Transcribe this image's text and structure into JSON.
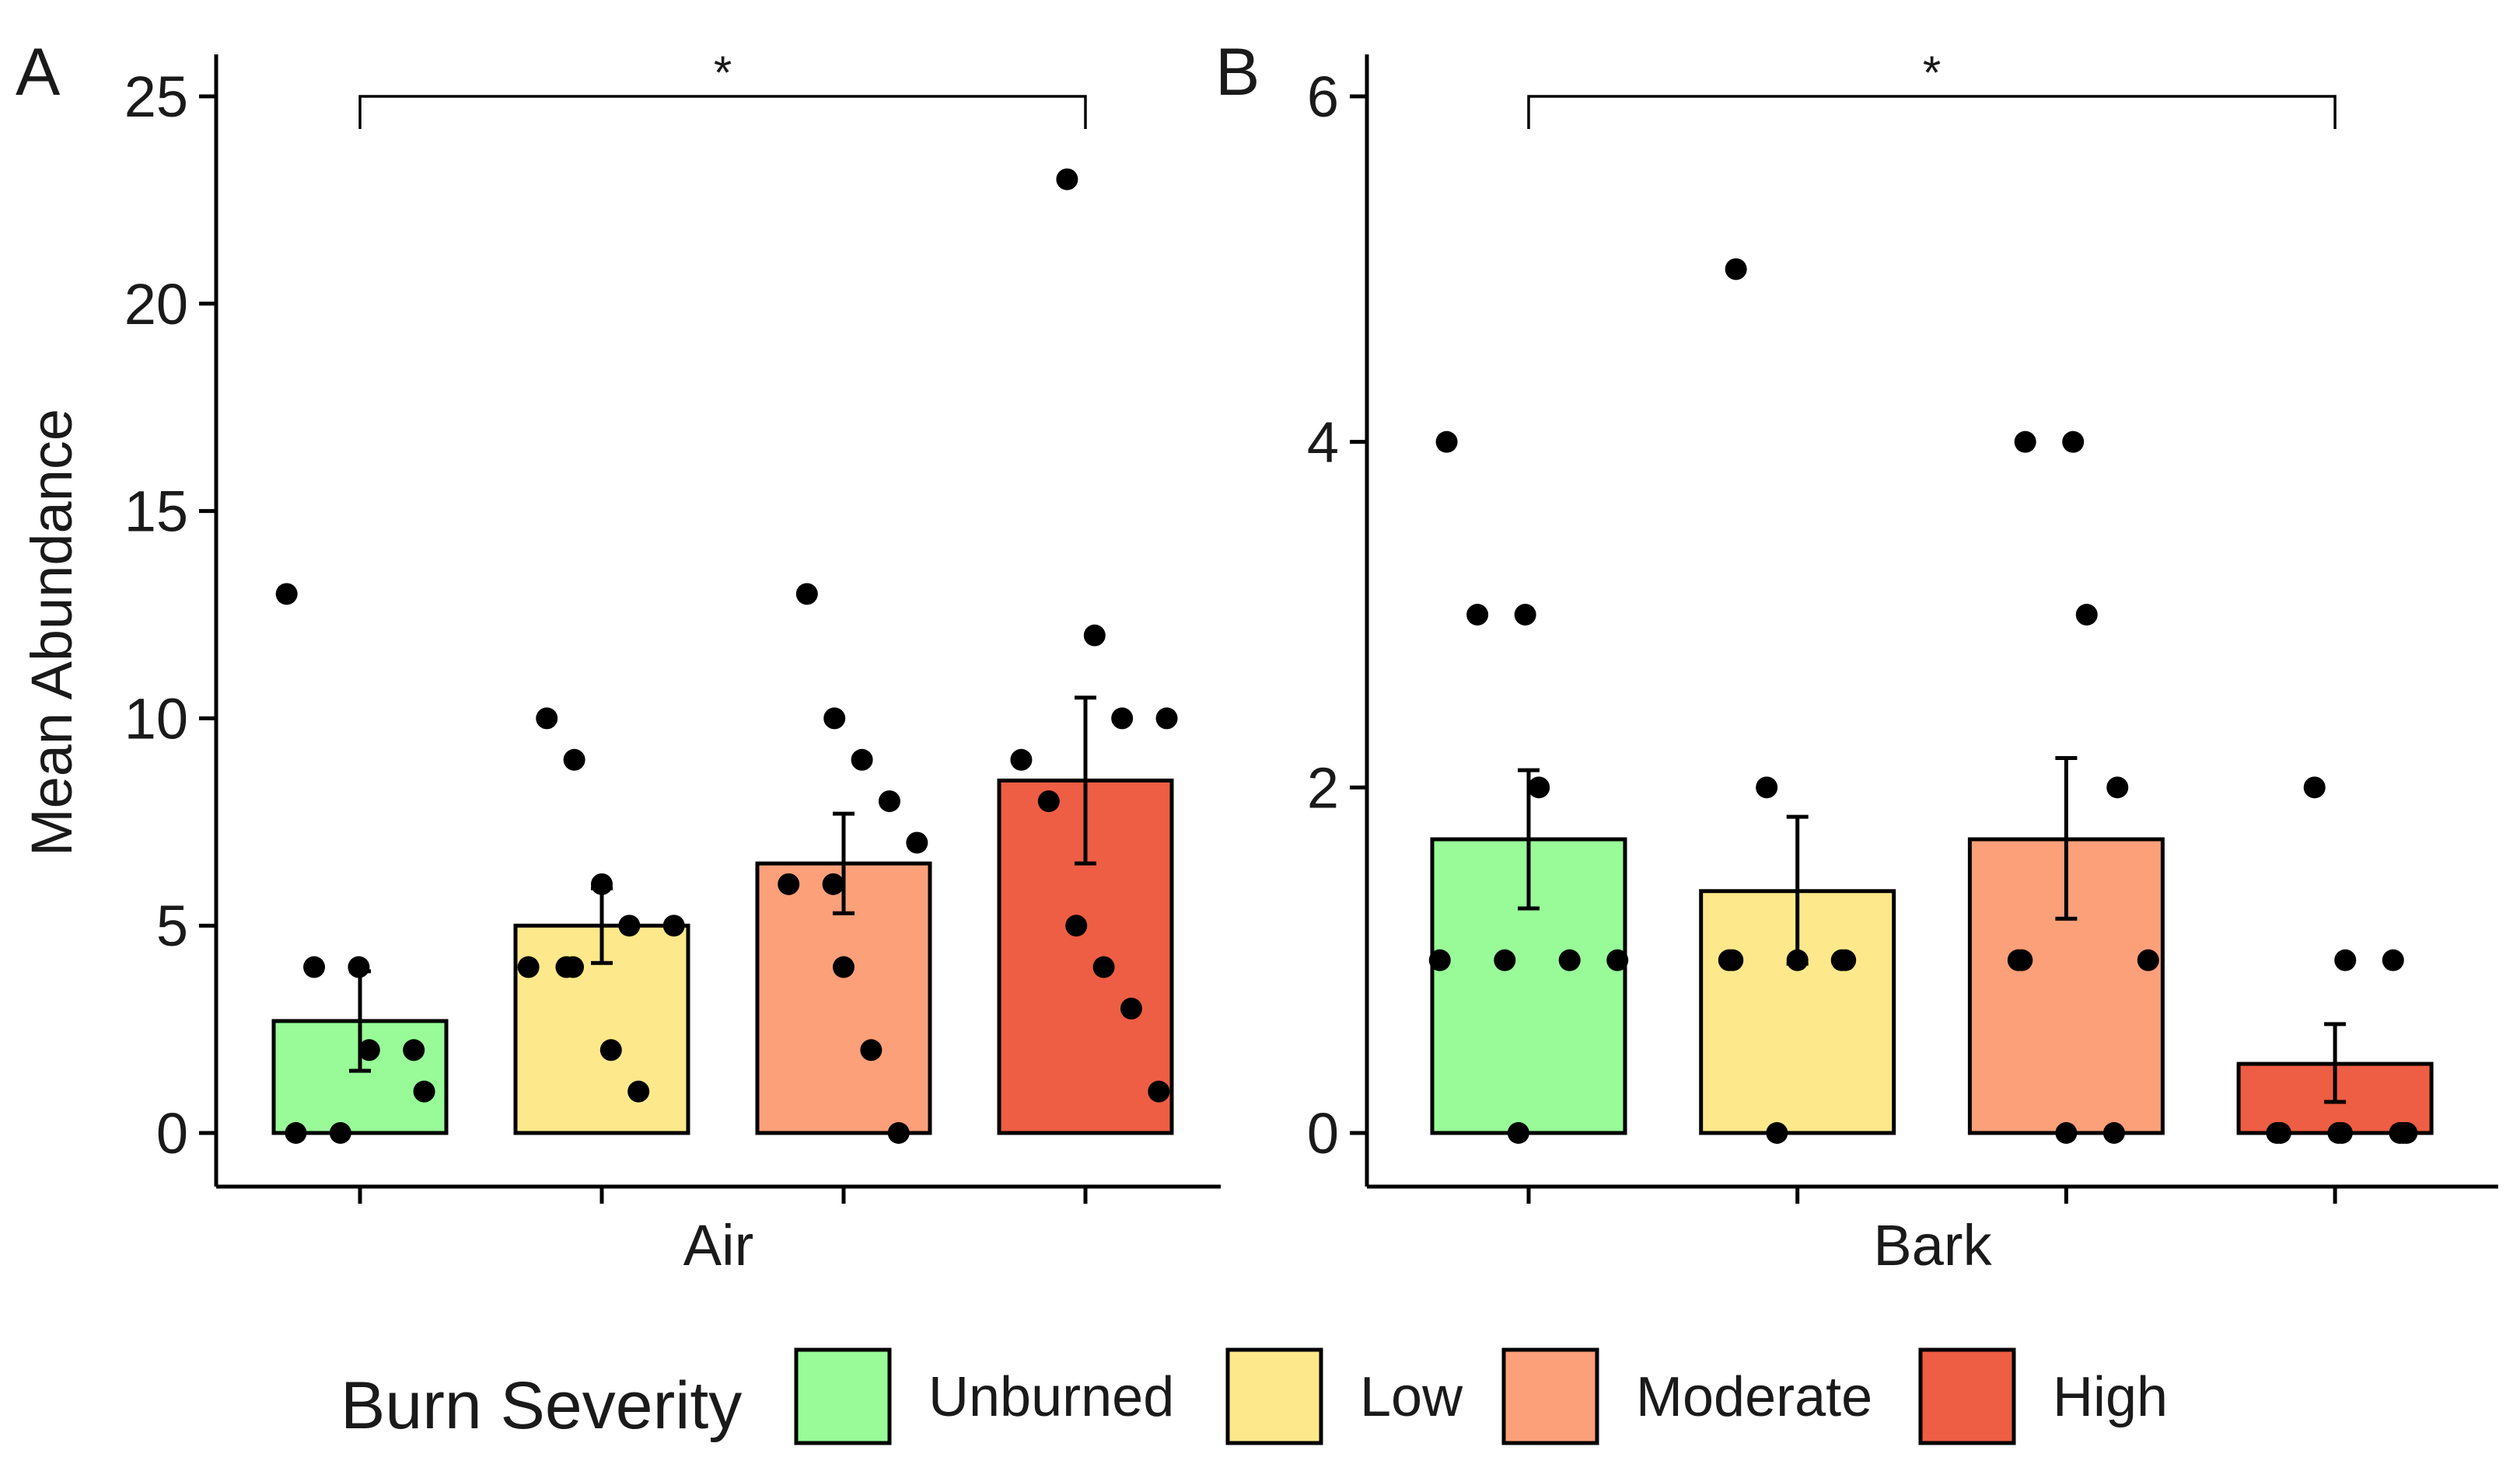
{
  "chart_data": [
    {
      "panel": "A",
      "type": "bar",
      "xlabel": "Air",
      "ylabel": "Mean Abundance",
      "ylim": [
        0,
        25
      ],
      "yticks": [
        "0",
        "5",
        "10",
        "15",
        "20",
        "25"
      ],
      "categories": [
        "Unburned",
        "Low",
        "Moderate",
        "High"
      ],
      "values": [
        2.7,
        5.0,
        6.5,
        8.5
      ],
      "error_low": [
        1.5,
        4.1,
        5.3,
        6.5
      ],
      "error_high": [
        3.9,
        5.9,
        7.7,
        10.5
      ],
      "points": [
        [
          13,
          4,
          4,
          2,
          2,
          1,
          0,
          0
        ],
        [
          10,
          9,
          6,
          5,
          5,
          4,
          4,
          4,
          2,
          1
        ],
        [
          13,
          10,
          9,
          8,
          7,
          6,
          6,
          4,
          2,
          0
        ],
        [
          23,
          12,
          10,
          10,
          9,
          8,
          5,
          4,
          3,
          1
        ]
      ],
      "significance": {
        "from": "Unburned",
        "to": "High",
        "label": "*"
      }
    },
    {
      "panel": "B",
      "type": "bar",
      "xlabel": "Bark",
      "ylabel": "",
      "ylim": [
        0,
        6
      ],
      "yticks": [
        "0",
        "2",
        "4",
        "6"
      ],
      "categories": [
        "Unburned",
        "Low",
        "Moderate",
        "High"
      ],
      "values": [
        1.7,
        1.4,
        1.7,
        0.4
      ],
      "error_low": [
        1.3,
        0.98,
        1.24,
        0.18
      ],
      "error_high": [
        2.1,
        1.83,
        2.17,
        0.63
      ],
      "points": [
        [
          4,
          3,
          3,
          2,
          1,
          1,
          1,
          1,
          0
        ],
        [
          5,
          2,
          1,
          1,
          1,
          1,
          1,
          0
        ],
        [
          4,
          4,
          3,
          2,
          1,
          1,
          1,
          0,
          0
        ],
        [
          2,
          1,
          1,
          0,
          0,
          0,
          0,
          0,
          0,
          0
        ]
      ],
      "significance": {
        "from": "Unburned",
        "to": "High",
        "label": "*"
      }
    }
  ],
  "legend": {
    "title": "Burn Severity",
    "position": "bottom",
    "items": [
      {
        "label": "Unburned",
        "color": "#98FB98"
      },
      {
        "label": "Low",
        "color": "#FDE98B"
      },
      {
        "label": "Moderate",
        "color": "#FCA07A"
      },
      {
        "label": "High",
        "color": "#EE5E44"
      }
    ]
  }
}
